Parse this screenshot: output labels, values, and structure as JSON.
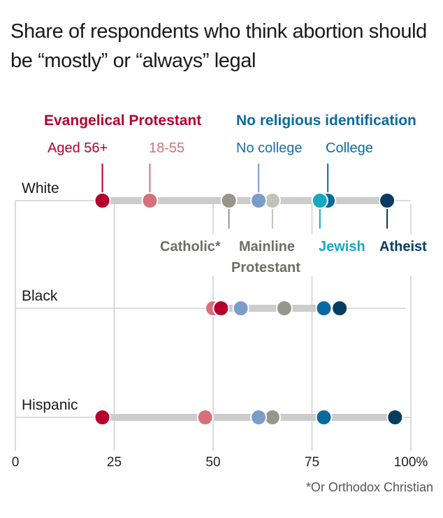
{
  "chart_data": {
    "type": "scatter",
    "subtype": "dot-plot",
    "title": "Share of respondents who think abortion should be “mostly” or “always” legal",
    "xlabel": "",
    "ylabel": "",
    "xlim": [
      0,
      100
    ],
    "x_ticks": [
      0,
      25,
      50,
      75,
      100
    ],
    "x_tick_labels": [
      "0",
      "25",
      "50",
      "75",
      "100%"
    ],
    "grid": true,
    "footnote": "*Or Orthodox Christian",
    "group_headers": {
      "evangelical": "Evangelical Protestant",
      "no_religion": "No religious identification"
    },
    "categories": [
      "White",
      "Black",
      "Hispanic"
    ],
    "series": [
      {
        "key": "evang_old",
        "name": "Evangelical Protestant, Aged 56+",
        "label": "Aged 56+",
        "color": "#b5002f",
        "values": [
          22,
          52,
          22
        ]
      },
      {
        "key": "evang_young",
        "name": "Evangelical Protestant, 18-55",
        "label": "18-55",
        "color": "#d6707a",
        "values": [
          34,
          50,
          48
        ]
      },
      {
        "key": "catholic",
        "name": "Catholic*",
        "label": "Catholic*",
        "color": "#96968a",
        "values": [
          54,
          68,
          65
        ]
      },
      {
        "key": "mainline",
        "name": "Mainline Protestant",
        "label": "Mainline Protestant",
        "color": "#c2c2ba",
        "values": [
          65,
          null,
          null
        ]
      },
      {
        "key": "nocollege",
        "name": "No religious identification, No college",
        "label": "No college",
        "color": "#7a9cc8",
        "values": [
          61.5,
          57,
          61.5
        ]
      },
      {
        "key": "college",
        "name": "No religious identification, College",
        "label": "College",
        "color": "#0a6aa0",
        "values": [
          79,
          78,
          78
        ]
      },
      {
        "key": "jewish",
        "name": "Jewish",
        "label": "Jewish",
        "color": "#17a8c4",
        "values": [
          77,
          null,
          null
        ]
      },
      {
        "key": "atheist",
        "name": "Atheist",
        "label": "Atheist",
        "color": "#083c60",
        "values": [
          94,
          82,
          96
        ]
      }
    ],
    "label_colors": {
      "evangelical_header": "#b5002f",
      "evang_old": "#b5002f",
      "evang_young": "#d6707a",
      "no_religion_header": "#0a6aa0",
      "nocollege": "#1a6ea6",
      "college": "#0a6aa0",
      "catholic": "#6e6e64",
      "mainline": "#6e6e64",
      "jewish": "#17a8c4",
      "atheist": "#083c60"
    },
    "annotations": {
      "top": [
        {
          "series": "evang_old",
          "row": 0,
          "text": "Aged 56+"
        },
        {
          "series": "evang_young",
          "row": 0,
          "text": "18-55"
        },
        {
          "series": "nocollege",
          "row": 0,
          "text": "No college"
        },
        {
          "series": "college",
          "row": 0,
          "text": "College"
        }
      ],
      "bottom": [
        {
          "series": "catholic",
          "row": 0,
          "text": "Catholic*"
        },
        {
          "series": "mainline",
          "row": 0,
          "text": "Mainline",
          "text2": "Protestant"
        },
        {
          "series": "jewish",
          "row": 0,
          "text": "Jewish"
        },
        {
          "series": "atheist",
          "row": 0,
          "text": "Atheist"
        }
      ]
    }
  }
}
